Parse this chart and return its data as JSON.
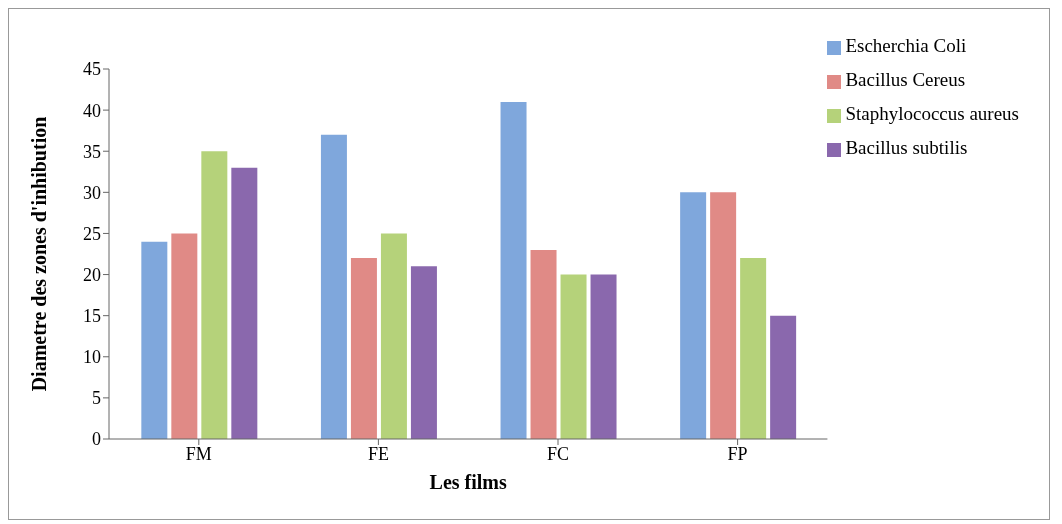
{
  "chart_data": {
    "type": "bar",
    "xlabel": "Les films",
    "ylabel": "Diametre  des zones d'inhibution",
    "categories": [
      "FM",
      "FE",
      "FC",
      "FP"
    ],
    "series": [
      {
        "name": "Escherchia Coli",
        "color": "#7fa7dc",
        "values": [
          24,
          37,
          41,
          30
        ]
      },
      {
        "name": "Bacillus Cereus",
        "color": "#e08a86",
        "values": [
          25,
          22,
          23,
          30
        ]
      },
      {
        "name": "Staphylococcus aureus",
        "color": "#b5d27a",
        "values": [
          35,
          25,
          20,
          22
        ]
      },
      {
        "name": "Bacillus subtilis",
        "color": "#8a68ad",
        "values": [
          33,
          21,
          20,
          15
        ]
      }
    ],
    "ylim": [
      0,
      45
    ],
    "yticks": [
      0,
      5,
      10,
      15,
      20,
      25,
      30,
      35,
      40,
      45
    ],
    "grid": false,
    "legend": "top right"
  }
}
